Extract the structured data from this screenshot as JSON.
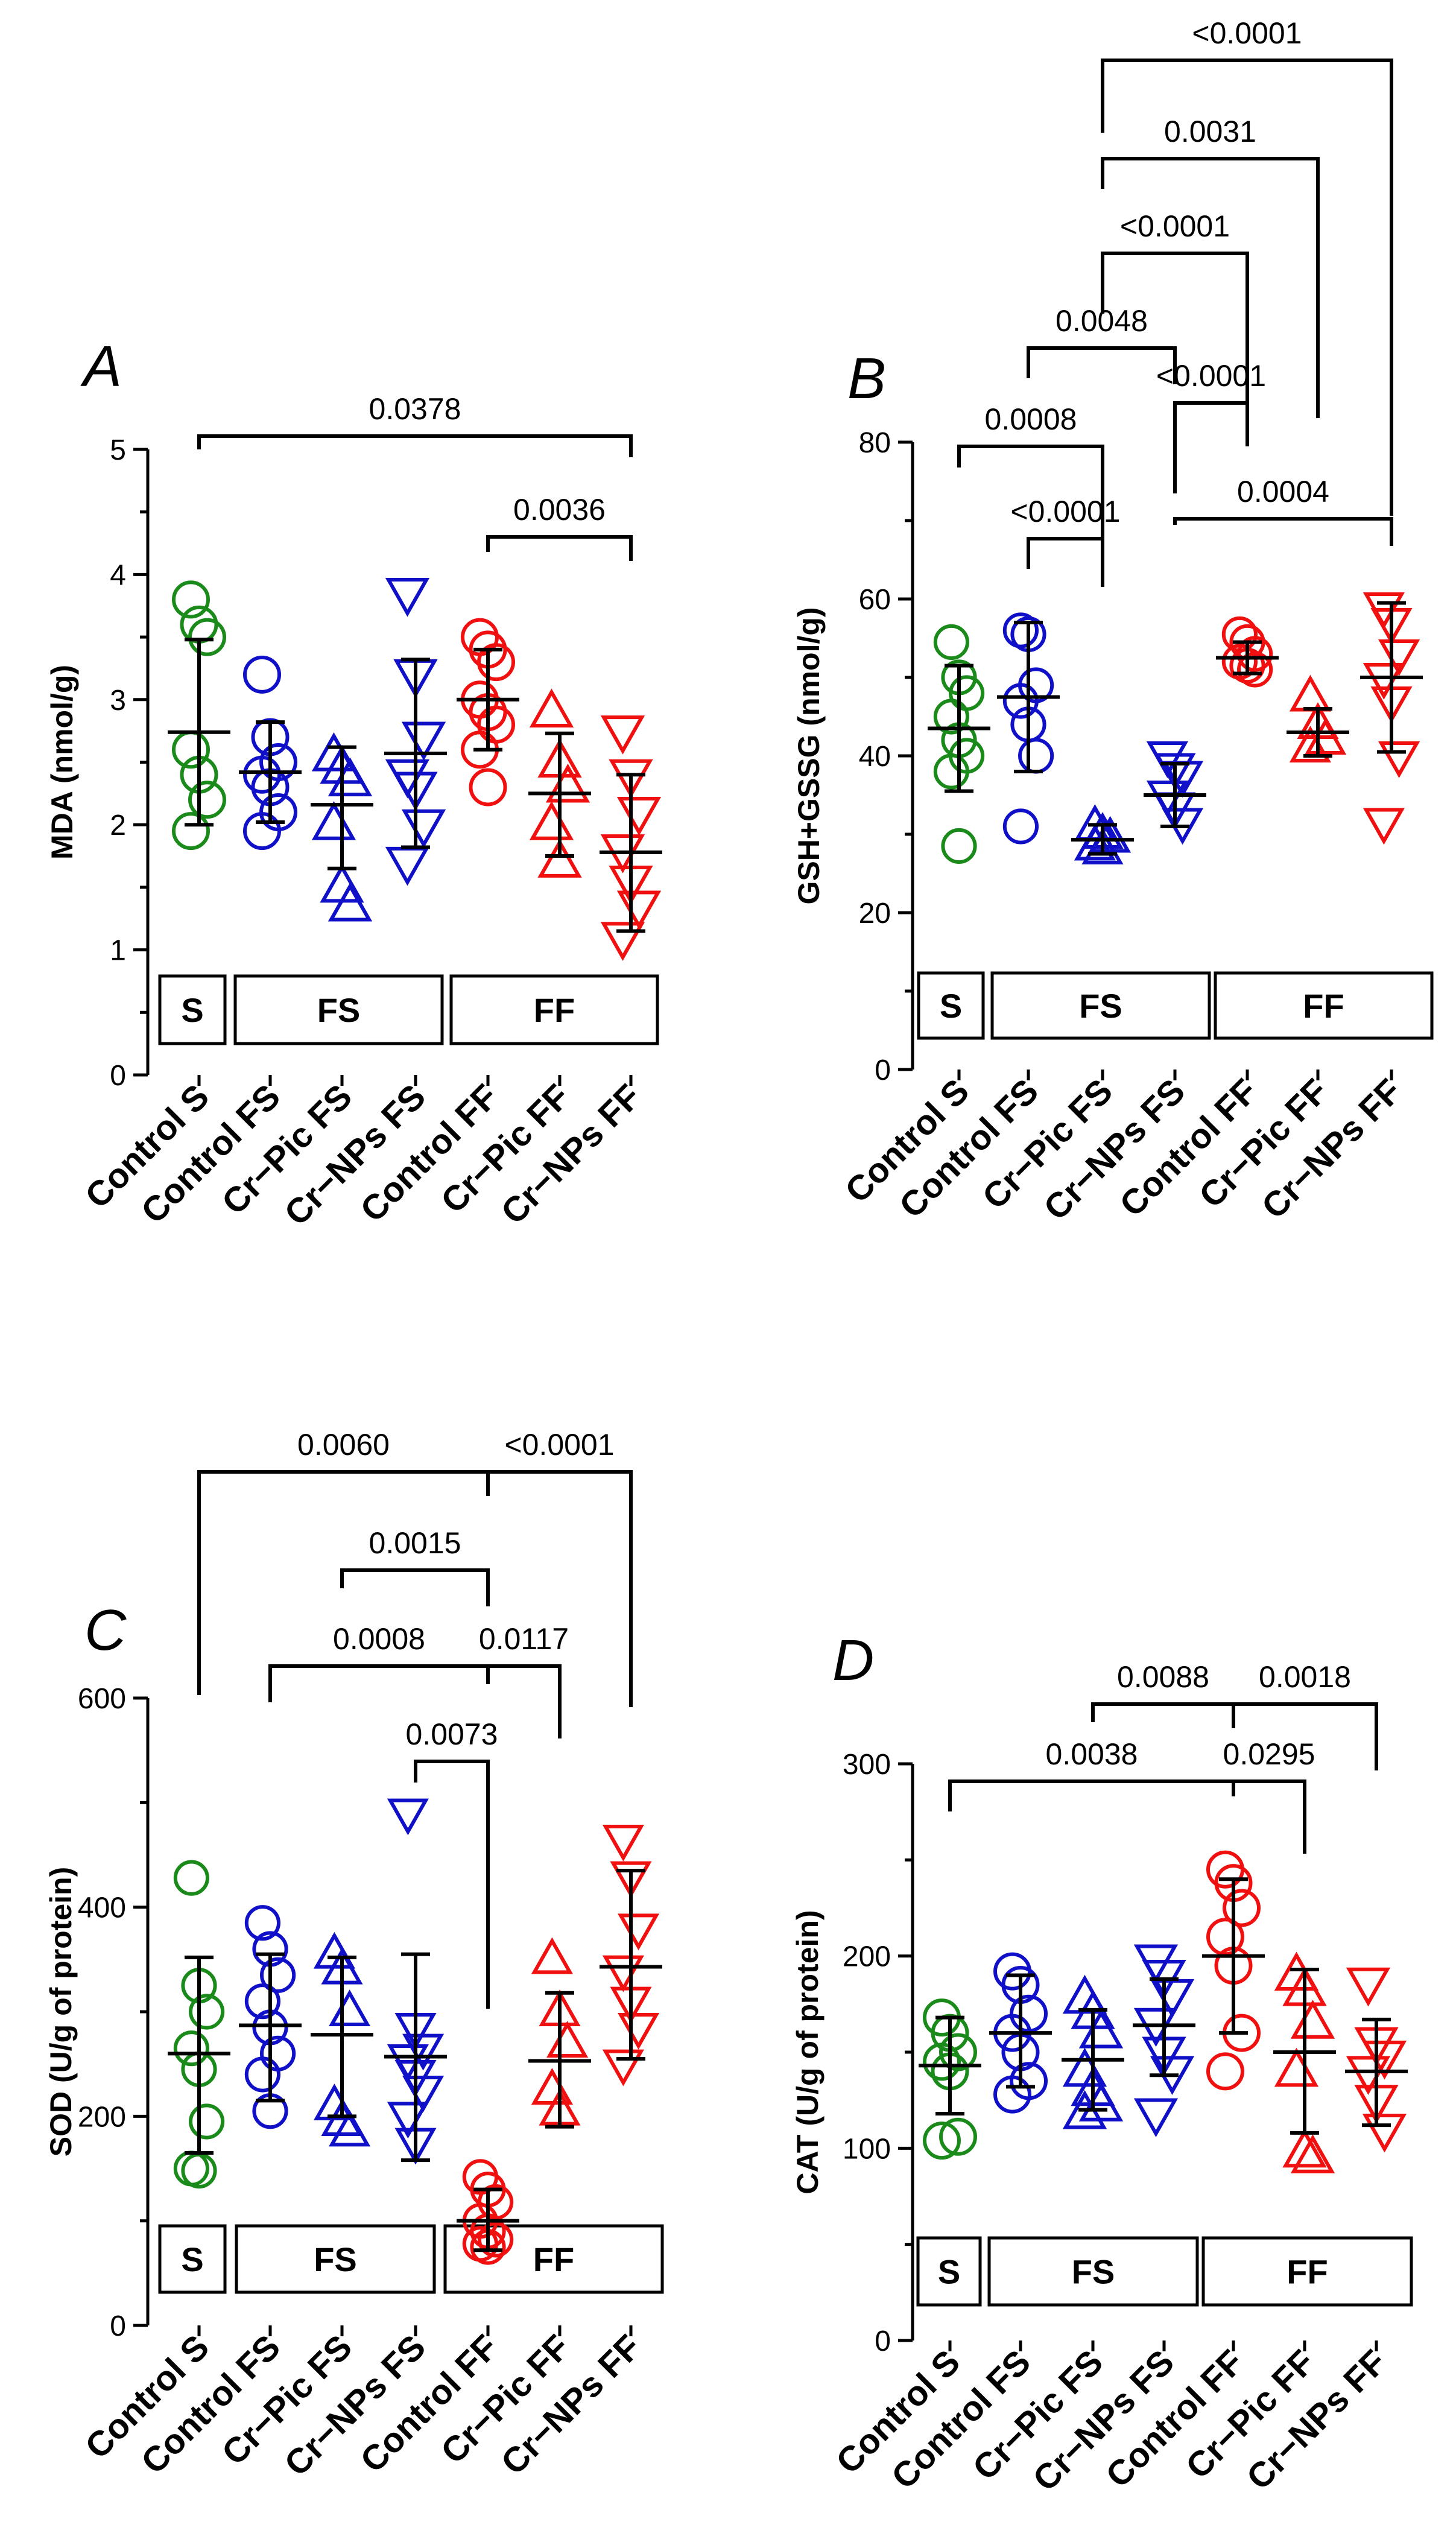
{
  "categories": [
    "Control S",
    "Control FS",
    "Cr−Pic FS",
    "Cr−NPs FS",
    "Control FF",
    "Cr−Pic FF",
    "Cr−NPs FF"
  ],
  "groups": [
    "S",
    "FS",
    "FF"
  ],
  "colors": {
    "green": "#1a8a1a",
    "blue": "#1010c8",
    "red": "#f01010",
    "black": "#000000"
  },
  "chart_data": [
    {
      "type": "scatter",
      "panel": "A",
      "ylabel": "MDA (nmol/g)",
      "ylim": [
        0,
        5
      ],
      "yticks": [
        0,
        1,
        2,
        3,
        4,
        5
      ],
      "categories": [
        "Control S",
        "Control FS",
        "Cr−Pic FS",
        "Cr−NPs FS",
        "Control FF",
        "Cr−Pic FF",
        "Cr−NPs FF"
      ],
      "series": [
        {
          "category": "Control S",
          "marker": "circle",
          "color": "#1a8a1a",
          "points": [
            3.8,
            3.6,
            3.5,
            2.6,
            2.4,
            2.2,
            1.95
          ],
          "mean": 2.74,
          "sd_low": 2.0,
          "sd_high": 3.48
        },
        {
          "category": "Control FS",
          "marker": "circle",
          "color": "#1010c8",
          "points": [
            3.2,
            2.7,
            2.5,
            2.4,
            2.3,
            2.1,
            1.95
          ],
          "mean": 2.42,
          "sd_low": 2.02,
          "sd_high": 2.82
        },
        {
          "category": "Cr−Pic FS",
          "marker": "triangle-up",
          "color": "#1010c8",
          "points": [
            2.55,
            2.45,
            2.35,
            2.0,
            1.5,
            1.35
          ],
          "mean": 2.16,
          "sd_low": 1.65,
          "sd_high": 2.62
        },
        {
          "category": "Cr−NPs FS",
          "marker": "triangle-down",
          "color": "#1010c8",
          "points": [
            3.85,
            3.2,
            2.7,
            2.4,
            2.3,
            2.0,
            1.7
          ],
          "mean": 2.57,
          "sd_low": 1.82,
          "sd_high": 3.32
        },
        {
          "category": "Control FF",
          "marker": "circle",
          "color": "#f01010",
          "points": [
            3.5,
            3.4,
            3.3,
            3.0,
            2.9,
            2.8,
            2.6,
            2.3
          ],
          "mean": 3.0,
          "sd_low": 2.6,
          "sd_high": 3.4
        },
        {
          "category": "Cr−Pic FF",
          "marker": "triangle-up",
          "color": "#f01010",
          "points": [
            2.9,
            2.5,
            2.3,
            2.0,
            1.7
          ],
          "mean": 2.25,
          "sd_low": 1.75,
          "sd_high": 2.73
        },
        {
          "category": "Cr−NPs FF",
          "marker": "triangle-down",
          "color": "#f01010",
          "points": [
            2.75,
            2.4,
            2.1,
            1.8,
            1.55,
            1.35,
            1.1
          ],
          "mean": 1.78,
          "sd_low": 1.15,
          "sd_high": 2.4
        }
      ],
      "comparisons": [
        {
          "from": "Control S",
          "to": "Cr−NPs FF",
          "p": "0.0378"
        },
        {
          "from": "Control FF",
          "to": "Cr−NPs FF",
          "p": "0.0036"
        }
      ]
    },
    {
      "type": "scatter",
      "panel": "B",
      "ylabel": "GSH+GSSG (nmol/g)",
      "ylim": [
        0,
        80
      ],
      "yticks": [
        0,
        20,
        40,
        60,
        80
      ],
      "categories": [
        "Control S",
        "Control FS",
        "Cr−Pic FS",
        "Cr−NPs FS",
        "Control FF",
        "Cr−Pic FF",
        "Cr−NPs FF"
      ],
      "series": [
        {
          "category": "Control S",
          "marker": "circle",
          "color": "#1a8a1a",
          "points": [
            54.5,
            50,
            48,
            45,
            42,
            40,
            38,
            28.5
          ],
          "mean": 43.5,
          "sd_low": 35.5,
          "sd_high": 51.5
        },
        {
          "category": "Control FS",
          "marker": "circle",
          "color": "#1010c8",
          "points": [
            56,
            55.5,
            49,
            47,
            44,
            40,
            31
          ],
          "mean": 47.5,
          "sd_low": 38,
          "sd_high": 57
        },
        {
          "category": "Cr−Pic FS",
          "marker": "triangle-up",
          "color": "#1010c8",
          "points": [
            31,
            30,
            29.5,
            28.5,
            28
          ],
          "mean": 29.3,
          "sd_low": 27.5,
          "sd_high": 31.2
        },
        {
          "category": "Cr−NPs FS",
          "marker": "triangle-down",
          "color": "#1010c8",
          "points": [
            40,
            38.5,
            37.5,
            35,
            33.5,
            31.5
          ],
          "mean": 35,
          "sd_low": 31,
          "sd_high": 39
        },
        {
          "category": "Control FF",
          "marker": "circle",
          "color": "#f01010",
          "points": [
            55.5,
            54.5,
            53,
            52,
            51.5,
            51
          ],
          "mean": 52.5,
          "sd_low": 50.5,
          "sd_high": 54.5
        },
        {
          "category": "Cr−Pic FF",
          "marker": "triangle-up",
          "color": "#f01010",
          "points": [
            47.5,
            44,
            42,
            41
          ],
          "mean": 43,
          "sd_low": 40,
          "sd_high": 46
        },
        {
          "category": "Cr−NPs FF",
          "marker": "triangle-down",
          "color": "#f01010",
          "points": [
            59,
            57,
            53,
            50,
            47,
            40,
            31.5
          ],
          "mean": 50,
          "sd_low": 40.5,
          "sd_high": 59.5
        }
      ],
      "comparisons": [
        {
          "from": "Control S",
          "to": "Cr−Pic FS",
          "p": "0.0008"
        },
        {
          "from": "Control FS",
          "to": "Cr−Pic FS",
          "p": "<0.0001"
        },
        {
          "from": "Control FS",
          "to": "Cr−NPs FS",
          "p": "0.0048"
        },
        {
          "from": "Cr−NPs FS",
          "to": "Control FF",
          "p": "<0.0001"
        },
        {
          "from": "Cr−NPs FS",
          "to": "Cr−NPs FF",
          "p": "0.0004"
        },
        {
          "from": "Cr−Pic FS",
          "to": "Control FF",
          "p": "<0.0001"
        },
        {
          "from": "Cr−Pic FS",
          "to": "Cr−Pic FF",
          "p": "0.0031"
        },
        {
          "from": "Cr−Pic FS",
          "to": "Cr−NPs FF",
          "p": "<0.0001"
        }
      ]
    },
    {
      "type": "scatter",
      "panel": "C",
      "ylabel": "SOD (U/g of protein)",
      "ylim": [
        0,
        600
      ],
      "yticks": [
        0,
        200,
        400,
        600
      ],
      "categories": [
        "Control S",
        "Control FS",
        "Cr−Pic FS",
        "Cr−NPs FS",
        "Control FF",
        "Cr−Pic FF",
        "Cr−NPs FF"
      ],
      "series": [
        {
          "category": "Control S",
          "marker": "circle",
          "color": "#1a8a1a",
          "points": [
            428,
            325,
            300,
            265,
            245,
            195,
            150,
            148
          ],
          "mean": 260,
          "sd_low": 165,
          "sd_high": 352
        },
        {
          "category": "Control FS",
          "marker": "circle",
          "color": "#1010c8",
          "points": [
            385,
            360,
            335,
            310,
            285,
            260,
            240,
            205
          ],
          "mean": 287,
          "sd_low": 215,
          "sd_high": 355
        },
        {
          "category": "Cr−Pic FS",
          "marker": "triangle-up",
          "color": "#1010c8",
          "points": [
            355,
            340,
            300,
            210,
            195,
            185
          ],
          "mean": 278,
          "sd_low": 200,
          "sd_high": 352
        },
        {
          "category": "Cr−NPs FS",
          "marker": "triangle-down",
          "color": "#1010c8",
          "points": [
            490,
            285,
            265,
            255,
            240,
            225,
            200,
            175
          ],
          "mean": 257,
          "sd_low": 158,
          "sd_high": 355
        },
        {
          "category": "Control FF",
          "marker": "circle",
          "color": "#f01010",
          "points": [
            142,
            130,
            118,
            100,
            90,
            82,
            78,
            75
          ],
          "mean": 100,
          "sd_low": 72,
          "sd_high": 130
        },
        {
          "category": "Cr−Pic FF",
          "marker": "triangle-up",
          "color": "#f01010",
          "points": [
            350,
            300,
            270,
            225,
            205
          ],
          "mean": 253,
          "sd_low": 190,
          "sd_high": 318
        },
        {
          "category": "Cr−NPs FF",
          "marker": "triangle-down",
          "color": "#f01010",
          "points": [
            465,
            430,
            380,
            340,
            310,
            285,
            250
          ],
          "mean": 343,
          "sd_low": 255,
          "sd_high": 435
        }
      ],
      "comparisons": [
        {
          "from": "Control S",
          "to": "Control FF",
          "p": "0.0060"
        },
        {
          "from": "Control FF",
          "to": "Cr−NPs FF",
          "p": "<0.0001"
        },
        {
          "from": "Cr−Pic FS",
          "to": "Control FF",
          "p": "0.0015"
        },
        {
          "from": "Control FS",
          "to": "Control FF",
          "p": "0.0008"
        },
        {
          "from": "Control FF",
          "to": "Cr−Pic FF",
          "p": "0.0117"
        },
        {
          "from": "Cr−NPs FS",
          "to": "Control FF",
          "p": "0.0073"
        }
      ]
    },
    {
      "type": "scatter",
      "panel": "D",
      "ylabel": "CAT (U/g of protein)",
      "ylim": [
        0,
        300
      ],
      "yticks": [
        0,
        100,
        200,
        300
      ],
      "categories": [
        "Control S",
        "Control FS",
        "Cr−Pic FS",
        "Cr−NPs FS",
        "Control FF",
        "Cr−Pic FF",
        "Cr−NPs FF"
      ],
      "series": [
        {
          "category": "Control S",
          "marker": "circle",
          "color": "#1a8a1a",
          "points": [
            168,
            160,
            150,
            145,
            140,
            106,
            104
          ],
          "mean": 143,
          "sd_low": 118,
          "sd_high": 168
        },
        {
          "category": "Control FS",
          "marker": "circle",
          "color": "#1010c8",
          "points": [
            192,
            185,
            170,
            160,
            150,
            135,
            128
          ],
          "mean": 160,
          "sd_low": 132,
          "sd_high": 190
        },
        {
          "category": "Cr−Pic FS",
          "marker": "triangle-up",
          "color": "#1010c8",
          "points": [
            178,
            170,
            160,
            140,
            130,
            122,
            118
          ],
          "mean": 146,
          "sd_low": 120,
          "sd_high": 172
        },
        {
          "category": "Cr−NPs FS",
          "marker": "triangle-down",
          "color": "#1010c8",
          "points": [
            198,
            190,
            180,
            165,
            150,
            140,
            118
          ],
          "mean": 164,
          "sd_low": 138,
          "sd_high": 188
        },
        {
          "category": "Control FF",
          "marker": "circle",
          "color": "#f01010",
          "points": [
            245,
            238,
            225,
            210,
            195,
            160,
            140
          ],
          "mean": 200,
          "sd_low": 160,
          "sd_high": 240
        },
        {
          "category": "Cr−Pic FF",
          "marker": "triangle-up",
          "color": "#f01010",
          "points": [
            190,
            182,
            165,
            140,
            98,
            95
          ],
          "mean": 150,
          "sd_low": 108,
          "sd_high": 193
        },
        {
          "category": "Cr−NPs FF",
          "marker": "triangle-down",
          "color": "#f01010",
          "points": [
            186,
            155,
            148,
            140,
            125,
            110
          ],
          "mean": 140,
          "sd_low": 112,
          "sd_high": 167
        }
      ],
      "comparisons": [
        {
          "from": "Cr−Pic FS",
          "to": "Control FF",
          "p": "0.0088"
        },
        {
          "from": "Control FF",
          "to": "Cr−NPs FF",
          "p": "0.0018"
        },
        {
          "from": "Control S",
          "to": "Control FF",
          "p": "0.0038"
        },
        {
          "from": "Control FF",
          "to": "Cr−Pic FF",
          "p": "0.0295"
        }
      ]
    }
  ]
}
